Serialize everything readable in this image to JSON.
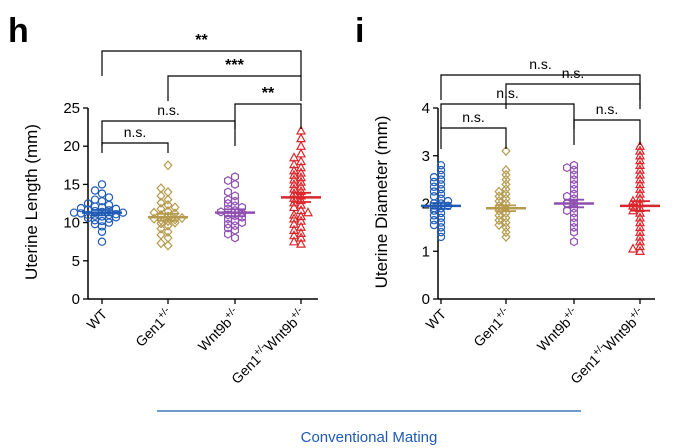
{
  "colors": {
    "wt": "#1f5bb5",
    "gen1": "#b59a4d",
    "wnt9b": "#8e4fb0",
    "double": "#d9262b",
    "footer": "#1f5bb5"
  },
  "footer_label": "Conventional Mating",
  "chart_data": [
    {
      "type": "scatter",
      "panel": "h",
      "ylabel": "Uterine Length (mm)",
      "ylim": [
        0,
        25
      ],
      "yticks": [
        0,
        5,
        10,
        15,
        20,
        25
      ],
      "categories": [
        "WT",
        "Gen1",
        "Wnt9b",
        "Gen1-Wnt9b"
      ],
      "category_labels": [
        {
          "base": "WT",
          "sup": ""
        },
        {
          "base": "Gen1",
          "sup": "+/-"
        },
        {
          "base": "Wnt9b",
          "sup": "+/-"
        },
        {
          "base": "Gen1",
          "sup": "+/-",
          "base2": "Wnt9b",
          "sup2": "+/-"
        }
      ],
      "series": [
        {
          "key": "wt",
          "marker": "circle",
          "mean": 11.3,
          "sem": 0.35,
          "values": [
            7.5,
            8.8,
            9.5,
            9.8,
            10.0,
            10.2,
            10.3,
            10.5,
            10.6,
            10.7,
            10.8,
            10.9,
            11.0,
            11.0,
            11.1,
            11.2,
            11.3,
            11.3,
            11.4,
            11.5,
            11.6,
            11.7,
            11.8,
            11.9,
            12.0,
            12.1,
            12.3,
            12.5,
            12.8,
            13.0,
            13.3,
            13.8,
            14.2,
            15.0
          ]
        },
        {
          "key": "gen1",
          "marker": "diamond",
          "mean": 10.7,
          "sem": 0.45,
          "values": [
            7.0,
            7.3,
            8.0,
            8.4,
            8.8,
            9.2,
            9.6,
            9.9,
            10.0,
            10.2,
            10.3,
            10.4,
            10.5,
            10.6,
            10.8,
            11.0,
            11.2,
            11.3,
            11.5,
            11.8,
            12.0,
            12.3,
            12.6,
            13.0,
            13.5,
            14.0,
            14.5,
            17.5
          ]
        },
        {
          "key": "wnt9b",
          "marker": "hexagon",
          "mean": 11.3,
          "sem": 0.45,
          "values": [
            8.0,
            8.5,
            9.0,
            9.3,
            9.6,
            9.8,
            10.0,
            10.2,
            10.5,
            10.7,
            10.9,
            11.0,
            11.2,
            11.4,
            11.6,
            11.8,
            12.0,
            12.2,
            12.5,
            12.8,
            13.0,
            13.5,
            14.0,
            15.0,
            15.5,
            16.0
          ]
        },
        {
          "key": "double",
          "marker": "triangle",
          "mean": 13.3,
          "sem": 0.6,
          "values": [
            7.2,
            7.5,
            8.0,
            8.3,
            8.6,
            9.0,
            9.4,
            9.8,
            10.2,
            10.5,
            10.8,
            11.0,
            11.3,
            11.6,
            12.0,
            12.3,
            12.6,
            12.9,
            13.2,
            13.5,
            13.8,
            14.1,
            14.4,
            14.7,
            15.0,
            15.3,
            15.6,
            15.9,
            16.2,
            16.5,
            16.8,
            17.2,
            17.6,
            18.0,
            18.5,
            19.0,
            20.0,
            21.0,
            22.0
          ]
        }
      ],
      "comparisons": [
        {
          "groups": [
            0,
            3
          ],
          "label": "**"
        },
        {
          "groups": [
            1,
            3
          ],
          "label": "***"
        },
        {
          "groups": [
            0,
            2
          ],
          "label": "n.s."
        },
        {
          "groups": [
            2,
            3
          ],
          "label": "**"
        },
        {
          "groups": [
            0,
            1
          ],
          "label": "n.s."
        }
      ]
    },
    {
      "type": "scatter",
      "panel": "i",
      "ylabel": "Uterine Diameter (mm)",
      "ylim": [
        0,
        4
      ],
      "yticks": [
        0,
        1,
        2,
        3,
        4
      ],
      "categories": [
        "WT",
        "Gen1",
        "Wnt9b",
        "Gen1-Wnt9b"
      ],
      "category_labels": [
        {
          "base": "WT",
          "sup": ""
        },
        {
          "base": "Gen1",
          "sup": "+/-"
        },
        {
          "base": "Wnt9b",
          "sup": "+/-"
        },
        {
          "base": "Gen1",
          "sup": "+/-",
          "base2": "Wnt9b",
          "sup2": "+/-"
        }
      ],
      "series": [
        {
          "key": "wt",
          "marker": "circle",
          "mean": 1.95,
          "sem": 0.06,
          "values": [
            1.3,
            1.4,
            1.5,
            1.55,
            1.6,
            1.65,
            1.7,
            1.75,
            1.8,
            1.85,
            1.9,
            1.9,
            1.95,
            2.0,
            2.0,
            2.05,
            2.1,
            2.15,
            2.2,
            2.25,
            2.3,
            2.35,
            2.4,
            2.45,
            2.5,
            2.55,
            2.6,
            2.7,
            2.8
          ]
        },
        {
          "key": "gen1",
          "marker": "diamond",
          "mean": 1.9,
          "sem": 0.06,
          "values": [
            1.3,
            1.4,
            1.5,
            1.55,
            1.6,
            1.65,
            1.7,
            1.75,
            1.8,
            1.85,
            1.9,
            1.95,
            2.0,
            2.05,
            2.1,
            2.15,
            2.2,
            2.25,
            2.3,
            2.4,
            2.5,
            2.6,
            2.7,
            3.1
          ]
        },
        {
          "key": "wnt9b",
          "marker": "hexagon",
          "mean": 2.0,
          "sem": 0.08,
          "values": [
            1.2,
            1.4,
            1.5,
            1.6,
            1.7,
            1.8,
            1.85,
            1.9,
            2.0,
            2.0,
            2.1,
            2.15,
            2.2,
            2.3,
            2.4,
            2.5,
            2.6,
            2.7,
            2.75,
            2.8
          ]
        },
        {
          "key": "double",
          "marker": "triangle",
          "mean": 1.95,
          "sem": 0.1,
          "values": [
            1.0,
            1.05,
            1.1,
            1.2,
            1.3,
            1.4,
            1.5,
            1.6,
            1.7,
            1.8,
            1.85,
            1.9,
            1.95,
            2.0,
            2.05,
            2.1,
            2.2,
            2.3,
            2.4,
            2.5,
            2.6,
            2.7,
            2.8,
            2.9,
            3.0,
            3.1,
            3.2
          ]
        }
      ],
      "comparisons": [
        {
          "groups": [
            0,
            3
          ],
          "label": "n.s."
        },
        {
          "groups": [
            1,
            3
          ],
          "label": "n.s."
        },
        {
          "groups": [
            0,
            2
          ],
          "label": "n.s."
        },
        {
          "groups": [
            2,
            3
          ],
          "label": "n.s."
        },
        {
          "groups": [
            0,
            1
          ],
          "label": "n.s."
        }
      ]
    }
  ]
}
